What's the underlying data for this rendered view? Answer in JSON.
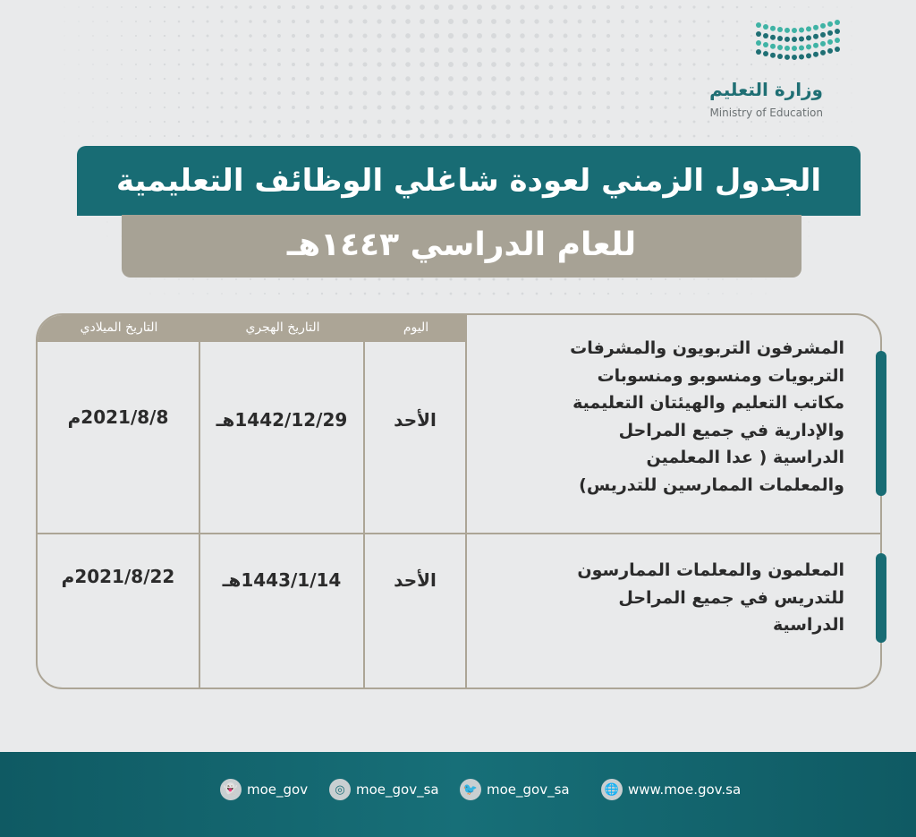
{
  "logo": {
    "arabic": "وزارة التعليم",
    "english": "Ministry of Education",
    "color": "#1f8f8a"
  },
  "title": {
    "line1": "الجدول الزمني لعودة شاغلي الوظائف التعليمية",
    "line2": "للعام الدراسي ١٤٤٣هـ"
  },
  "table": {
    "headers": {
      "day": "اليوم",
      "hijri": "التاريخ الهجري",
      "gregorian": "التاريخ الميلادي"
    },
    "rows": [
      {
        "description": [
          "المشرفون التربويون والمشرفات",
          "التربويات ومنسوبو ومنسوبات",
          "مكاتب التعليم والهيئتان التعليمية",
          "والإدارية في جميع المراحل",
          "الدراسية ( عدا المعلمين",
          "والمعلمات الممارسين للتدريس)"
        ],
        "day": "الأحد",
        "hijri": "1442/12/29هـ",
        "gregorian": "2021/8/8م"
      },
      {
        "description": [
          "المعلمون والمعلمات الممارسون",
          "للتدريس في جميع المراحل",
          "الدراسية"
        ],
        "day": "الأحد",
        "hijri": "1443/1/14هـ",
        "gregorian": "2021/8/22م"
      }
    ]
  },
  "footer": {
    "links": [
      {
        "icon": "snapchat-icon",
        "label": "moe_gov"
      },
      {
        "icon": "instagram-icon",
        "label": "moe_gov_sa"
      },
      {
        "icon": "twitter-icon",
        "label": "moe_gov_sa"
      },
      {
        "icon": "globe-icon",
        "label": "www.moe.gov.sa"
      }
    ]
  },
  "colors": {
    "teal": "#186c74",
    "taupe": "#a7a295",
    "background": "#e9eaeb"
  }
}
